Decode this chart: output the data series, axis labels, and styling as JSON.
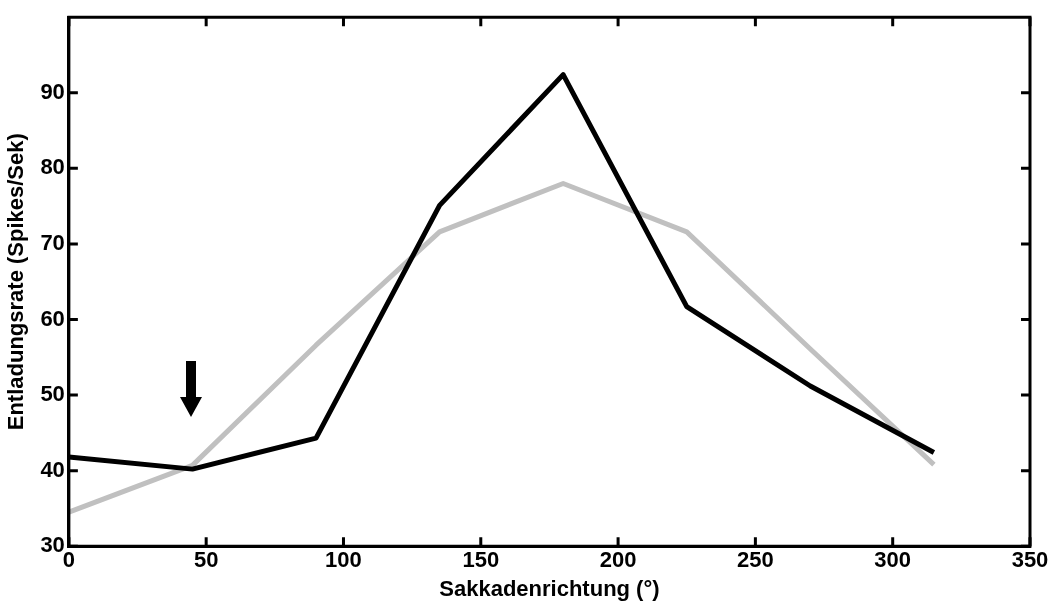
{
  "chart_data": {
    "type": "line",
    "xlabel": "Sakkadenrichtung (°)",
    "ylabel": "Entladungsrate (Spikes/Sek)",
    "x": [
      0,
      45,
      90,
      135,
      180,
      225,
      270,
      315
    ],
    "series": [
      {
        "color": "#000000",
        "values": [
          41.8,
          40.2,
          44.3,
          75.1,
          92.4,
          61.7,
          51.2,
          42.4
        ]
      },
      {
        "color": "#c0c0c0",
        "values": [
          34.5,
          40.7,
          56.6,
          71.6,
          78.0,
          71.6,
          56.1,
          40.8
        ]
      }
    ],
    "xlim": [
      0,
      350
    ],
    "xticks": [
      0,
      50,
      100,
      150,
      200,
      250,
      300,
      350
    ],
    "ylim": [
      30,
      100
    ],
    "yticks": [
      30,
      40,
      50,
      60,
      70,
      80,
      90
    ],
    "grid": false,
    "legend": false,
    "marker": "none",
    "line_style": "solid"
  }
}
